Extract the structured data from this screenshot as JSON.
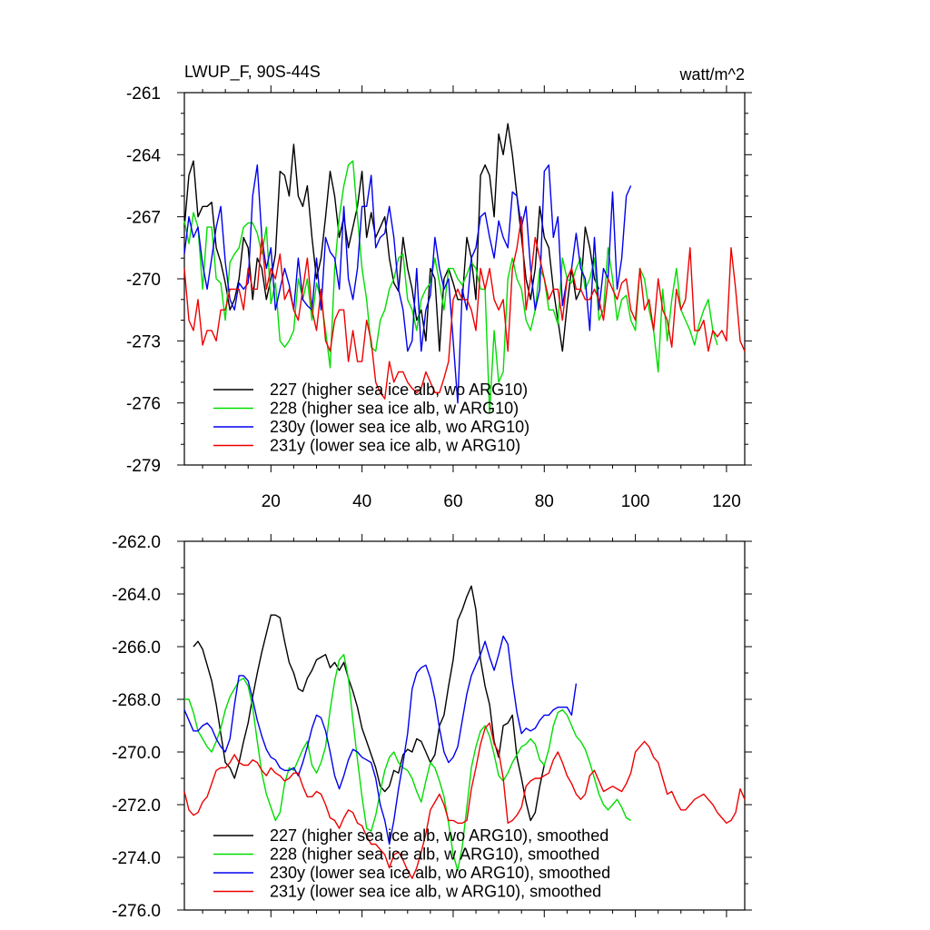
{
  "colors": {
    "s227": "#000000",
    "s228": "#00dd00",
    "s230y": "#0000ee",
    "s231y": "#ee0000"
  },
  "chart_data": [
    {
      "type": "line",
      "title": "LWUP_F, 90S-44S",
      "units": "watt/m^2",
      "xlim": [
        1,
        124
      ],
      "ylim": [
        -279,
        -261
      ],
      "yticks": [
        -261,
        -264,
        -267,
        -270,
        -273,
        -276,
        -279
      ],
      "ytick_labels": [
        "-261",
        "-264",
        "-267",
        "-270",
        "-273",
        "-276",
        "-279"
      ],
      "xticks": [
        20,
        40,
        60,
        80,
        100,
        120
      ],
      "xtick_labels": [
        "20",
        "40",
        "60",
        "80",
        "100",
        "120"
      ],
      "legend_position": "bottom-left",
      "series": [
        {
          "name": "227 (higher sea ice alb, wo ARG10)",
          "color": "#000000",
          "x_start": 1,
          "values": [
            -267.5,
            -265,
            -264.3,
            -267,
            -266.5,
            -266.5,
            -266.3,
            -268.5,
            -269.2,
            -270.2,
            -271.5,
            -271,
            -270,
            -268,
            -268.5,
            -271,
            -269,
            -269.5,
            -271,
            -270,
            -268.8,
            -264.8,
            -265,
            -266,
            -263.5,
            -266,
            -266.5,
            -265.5,
            -268,
            -270,
            -269,
            -267,
            -264.8,
            -266,
            -268,
            -267,
            -268.5,
            -267.5,
            -266.5,
            -264.8,
            -268,
            -266.8,
            -268,
            -267.5,
            -267,
            -269,
            -270.2,
            -270.6,
            -268,
            -269.5,
            -270.5,
            -272,
            -271.5,
            -273,
            -269.5,
            -270,
            -273.5,
            -270,
            -269.5,
            -270.2,
            -271,
            -271,
            -268,
            -269,
            -271,
            -265,
            -264.5,
            -265,
            -267,
            -263,
            -264,
            -262.5,
            -264,
            -266,
            -268,
            -270,
            -271,
            -269.5,
            -266.5,
            -268,
            -268.5,
            -270.5,
            -272,
            -273.5,
            -271.3,
            -269.5,
            -271,
            -270.5,
            -267.5,
            -268.5,
            -270,
            -270.5
          ]
        },
        {
          "name": "228 (higher sea ice alb, w ARG10)",
          "color": "#00dd00",
          "x_start": 1,
          "values": [
            -267.2,
            -268.3,
            -266.8,
            -267.5,
            -270.5,
            -267.5,
            -267.5,
            -270,
            -270.2,
            -272,
            -269.2,
            -268.8,
            -268.5,
            -267.5,
            -267.3,
            -267.3,
            -267.8,
            -268.8,
            -267.5,
            -271.2,
            -270.2,
            -273,
            -273.3,
            -273,
            -272.5,
            -270,
            -271,
            -270,
            -272,
            -270.2,
            -271,
            -272.5,
            -274.3,
            -269.5,
            -267,
            -265.5,
            -264.5,
            -264.3,
            -267,
            -269.5,
            -271,
            -273.3,
            -273.5,
            -272,
            -271.5,
            -270.5,
            -270,
            -269,
            -268.8,
            -271,
            -271.5,
            -272.5,
            -271,
            -270.5,
            -270.2,
            -269,
            -270.2,
            -271.5,
            -269.5,
            -269.5,
            -270,
            -270.3,
            -269.8,
            -269.2,
            -269.5,
            -270.5,
            -270.5,
            -276.5,
            -272.5,
            -275,
            -274.5,
            -270,
            -269,
            -270,
            -270.5,
            -272,
            -272.5,
            -271.5,
            -269.5,
            -270,
            -271.5,
            -271.5,
            -272.2,
            -269,
            -270,
            -270.2,
            -269.5,
            -269,
            -270.5,
            -270,
            -269,
            -272,
            -271.5,
            -268.5,
            -270,
            -272,
            -271,
            -270.8,
            -272,
            -272.5,
            -269.5,
            -270,
            -271.5,
            -272.5,
            -274.5,
            -270.5,
            -273,
            -271,
            -269.5,
            -271.5,
            -272,
            -272.5,
            -273.2,
            -272.2,
            -271.5,
            -271,
            -272.5,
            -273.2
          ]
        },
        {
          "name": "230y (lower sea ice alb, wo ARG10)",
          "color": "#0000ee",
          "x_start": 1,
          "values": [
            -268.8,
            -267,
            -268,
            -267.5,
            -269.3,
            -270.5,
            -269,
            -267.5,
            -266.5,
            -269.2,
            -271,
            -271.5,
            -270.2,
            -270.5,
            -270.2,
            -266,
            -264.5,
            -268,
            -269.5,
            -268.5,
            -271.5,
            -270.5,
            -269.5,
            -270.3,
            -271.5,
            -269,
            -271,
            -271.3,
            -271.5,
            -269,
            -271.5,
            -268,
            -268.7,
            -269,
            -270.5,
            -266.5,
            -270,
            -271,
            -269.5,
            -266.5,
            -266.5,
            -265,
            -268.5,
            -268,
            -267.8,
            -266.5,
            -268,
            -270.5,
            -271.5,
            -273.5,
            -273,
            -269.5,
            -273.5,
            -271.5,
            -270.8,
            -268,
            -269.5,
            -270.5,
            -270,
            -273,
            -276,
            -270.5,
            -271.5,
            -269,
            -268.5,
            -267,
            -266.8,
            -268,
            -269,
            -267.2,
            -268,
            -268.5,
            -265.8,
            -266,
            -267.5,
            -266.5,
            -269.5,
            -271.5,
            -270.5,
            -264.8,
            -264.5,
            -268,
            -267,
            -271.3,
            -270,
            -269.5,
            -267.8,
            -269.5,
            -270,
            -272.5,
            -268,
            -271.5,
            -269.5,
            -270,
            -265.8,
            -270.5,
            -269,
            -266,
            -265.5
          ]
        },
        {
          "name": "231y (lower sea ice alb, w ARG10)",
          "color": "#ee0000",
          "x_start": 1,
          "values": [
            -269.5,
            -272,
            -272.5,
            -271,
            -273.2,
            -272.5,
            -272.5,
            -273,
            -271.5,
            -271.5,
            -270.5,
            -270.5,
            -270.5,
            -271.5,
            -269.5,
            -270.5,
            -270.5,
            -268,
            -270.5,
            -269.5,
            -270,
            -268.8,
            -271,
            -270.5,
            -271.5,
            -272,
            -270.5,
            -269,
            -271.5,
            -272.5,
            -270.5,
            -273,
            -273.5,
            -272,
            -271.5,
            -271.5,
            -274,
            -272.5,
            -274,
            -274,
            -272,
            -273,
            -275,
            -275.5,
            -275.8,
            -274,
            -275,
            -274.5,
            -274.5,
            -275,
            -275.3,
            -275.5,
            -275.3,
            -274.5,
            -275,
            -275.5,
            -275.5,
            -274.8,
            -274,
            -271,
            -270.5,
            -271,
            -271,
            -271.5,
            -272.5,
            -269.5,
            -270.5,
            -269.5,
            -271,
            -271.5,
            -271,
            -273.5,
            -269.5,
            -268.5,
            -267,
            -271.5,
            -270,
            -268,
            -269,
            -270,
            -271,
            -270.5,
            -270.5,
            -272,
            -270,
            -269.5,
            -270.5,
            -270.5,
            -271,
            -271,
            -270.5,
            -271,
            -272,
            -270,
            -270.5,
            -271,
            -270.2,
            -270,
            -271.5,
            -272,
            -269.5,
            -271.5,
            -271,
            -272.5,
            -270,
            -271.5,
            -272,
            -273.3,
            -270.5,
            -271.5,
            -271,
            -268.5,
            -272.5,
            -272.5,
            -272,
            -273.5,
            -272.5,
            -272.8,
            -272.5,
            -273,
            -268.5,
            -270.5,
            -273,
            -273.5
          ]
        }
      ]
    },
    {
      "type": "line",
      "title": "",
      "xlim": [
        1,
        124
      ],
      "ylim": [
        -276,
        -262
      ],
      "yticks": [
        -262,
        -264,
        -266,
        -268,
        -270,
        -272,
        -274,
        -276
      ],
      "ytick_labels": [
        "-262.0",
        "-264.0",
        "-266.0",
        "-268.0",
        "-270.0",
        "-272.0",
        "-274.0",
        "-276.0"
      ],
      "legend_position": "bottom-left",
      "series": [
        {
          "name": "227 (higher sea ice alb, wo ARG10), smoothed",
          "color": "#000000",
          "x_start": 3,
          "values": [
            -266,
            -265.8,
            -266.1,
            -266.7,
            -267.3,
            -268.2,
            -269.3,
            -270.4,
            -270.6,
            -271.0,
            -270.4,
            -269.6,
            -268.9,
            -267.9,
            -267.0,
            -266.2,
            -265.5,
            -264.8,
            -264.8,
            -264.9,
            -265.8,
            -266.6,
            -267.0,
            -267.6,
            -267.7,
            -267.2,
            -266.9,
            -266.5,
            -266.4,
            -266.3,
            -266.8,
            -266.6,
            -266.9,
            -266.6,
            -267.2,
            -267.7,
            -268.3,
            -269.1,
            -269.6,
            -270.1,
            -270.6,
            -271.3,
            -271.5,
            -271.3,
            -270.7,
            -270.8,
            -270.1,
            -269.9,
            -270.0,
            -269.5,
            -269.6,
            -270.0,
            -270.4,
            -270.1,
            -269.0,
            -268.6,
            -267.5,
            -266.5,
            -265.0,
            -264.6,
            -264.1,
            -263.7,
            -264.6,
            -266.5,
            -267.5,
            -268.2,
            -269.6,
            -270.2,
            -269.0,
            -268.9,
            -268.6,
            -270.2,
            -271.0,
            -271.9,
            -272.6,
            -272.3,
            -271.3,
            -270.5
          ]
        },
        {
          "name": "228 (higher sea ice alb, w ARG10), smoothed",
          "color": "#00dd00",
          "x_start": 1,
          "values": [
            -268,
            -268,
            -268.5,
            -269.2,
            -269.5,
            -269.8,
            -270.0,
            -269.6,
            -269.1,
            -268.4,
            -267.9,
            -267.6,
            -267.3,
            -267.2,
            -267.5,
            -268.3,
            -269.6,
            -270.8,
            -271.6,
            -272.1,
            -272.6,
            -272.3,
            -271.2,
            -270.6,
            -270.7,
            -270.3,
            -269.9,
            -269.6,
            -270.5,
            -270.8,
            -270.4,
            -269.8,
            -268.4,
            -267.3,
            -266.5,
            -266.3,
            -267.2,
            -268.8,
            -270.3,
            -271.7,
            -272.9,
            -273.0,
            -272.4,
            -271.5,
            -270.7,
            -270.2,
            -270.0,
            -270.4,
            -270.6,
            -270.7,
            -271.0,
            -271.5,
            -271.9,
            -271.1,
            -270.4,
            -270.6,
            -271.1,
            -271.7,
            -272.7,
            -273.9,
            -274.5,
            -273.6,
            -272.1,
            -270.6,
            -269.8,
            -269.2,
            -269.0,
            -269.4,
            -270.1,
            -270.9,
            -271.1,
            -270.8,
            -270.4,
            -270.1,
            -269.8,
            -269.7,
            -269.5,
            -269.7,
            -270.3,
            -270.5,
            -269.9,
            -269.0,
            -268.5,
            -268.4,
            -268.6,
            -269.0,
            -269.4,
            -269.6,
            -269.9,
            -270.4,
            -271.0,
            -271.6,
            -272.0,
            -272.2,
            -272.0,
            -271.8,
            -272.1,
            -272.5,
            -272.6
          ]
        },
        {
          "name": "230y (lower sea ice alb, wo ARG10), smoothed",
          "color": "#0000ee",
          "x_start": 1,
          "values": [
            -268.4,
            -268.8,
            -269.2,
            -269.2,
            -269.0,
            -268.9,
            -269.1,
            -269.5,
            -269.8,
            -270.0,
            -269.5,
            -268.2,
            -267.1,
            -267.1,
            -267.3,
            -268.0,
            -268.8,
            -269.4,
            -269.9,
            -270.2,
            -270.3,
            -270.6,
            -270.7,
            -270.7,
            -270.6,
            -270.9,
            -270.4,
            -269.8,
            -269.1,
            -268.6,
            -268.7,
            -269.2,
            -270.0,
            -270.9,
            -271.4,
            -270.9,
            -270.3,
            -269.9,
            -270.0,
            -270.2,
            -270.3,
            -270.4,
            -271.0,
            -272.0,
            -272.6,
            -273.5,
            -272.6,
            -271.4,
            -270.4,
            -269.3,
            -267.6,
            -267.0,
            -266.8,
            -266.7,
            -267.2,
            -268.0,
            -269.1,
            -270.0,
            -270.4,
            -270.2,
            -269.8,
            -268.8,
            -267.8,
            -267.1,
            -266.7,
            -266.3,
            -265.8,
            -266.4,
            -266.9,
            -266.3,
            -265.6,
            -265.9,
            -267.3,
            -268.5,
            -269.3,
            -269.1,
            -269.2,
            -269.1,
            -268.8,
            -268.6,
            -268.6,
            -268.4,
            -268.3,
            -268.3,
            -268.3,
            -268.6,
            -267.4
          ]
        },
        {
          "name": "231y (lower sea ice alb, w ARG10), smoothed",
          "color": "#ee0000",
          "x_start": 1,
          "values": [
            -271.5,
            -272.2,
            -272.4,
            -272.3,
            -271.9,
            -271.7,
            -271.2,
            -270.7,
            -270.6,
            -270.6,
            -270.4,
            -270.1,
            -270.4,
            -270.5,
            -270.5,
            -270.3,
            -270.4,
            -270.7,
            -270.9,
            -270.6,
            -270.8,
            -270.9,
            -271.1,
            -271.0,
            -270.8,
            -270.8,
            -271.3,
            -271.7,
            -271.7,
            -271.5,
            -271.6,
            -272.0,
            -272.5,
            -272.6,
            -272.9,
            -272.5,
            -272.2,
            -272.3,
            -272.7,
            -272.8,
            -273.2,
            -273.5,
            -273.5,
            -273.7,
            -273.9,
            -274.4,
            -273.9,
            -273.8,
            -274.1,
            -274.5,
            -274.8,
            -274.4,
            -273.8,
            -273.1,
            -272.2,
            -271.9,
            -271.6,
            -272.0,
            -272.6,
            -272.6,
            -272.7,
            -272.7,
            -272.6,
            -271.4,
            -270.6,
            -269.7,
            -269.1,
            -268.9,
            -269.7,
            -270.0,
            -271.0,
            -272.7,
            -272.6,
            -272.4,
            -272.1,
            -271.3,
            -271.1,
            -271.0,
            -271.0,
            -270.9,
            -270.8,
            -270.3,
            -270.0,
            -270.4,
            -270.9,
            -271.2,
            -271.6,
            -271.8,
            -271.6,
            -270.9,
            -270.7,
            -271.1,
            -271.5,
            -271.4,
            -271.3,
            -271.4,
            -271.5,
            -271.2,
            -270.8,
            -270.0,
            -269.8,
            -269.6,
            -269.8,
            -270.2,
            -270.4,
            -271.0,
            -271.6,
            -271.5,
            -271.9,
            -272.2,
            -272.2,
            -272.0,
            -271.8,
            -271.7,
            -271.6,
            -271.8,
            -272.0,
            -272.3,
            -272.5,
            -272.7,
            -272.6,
            -272.3,
            -271.4,
            -271.8
          ]
        }
      ]
    }
  ]
}
